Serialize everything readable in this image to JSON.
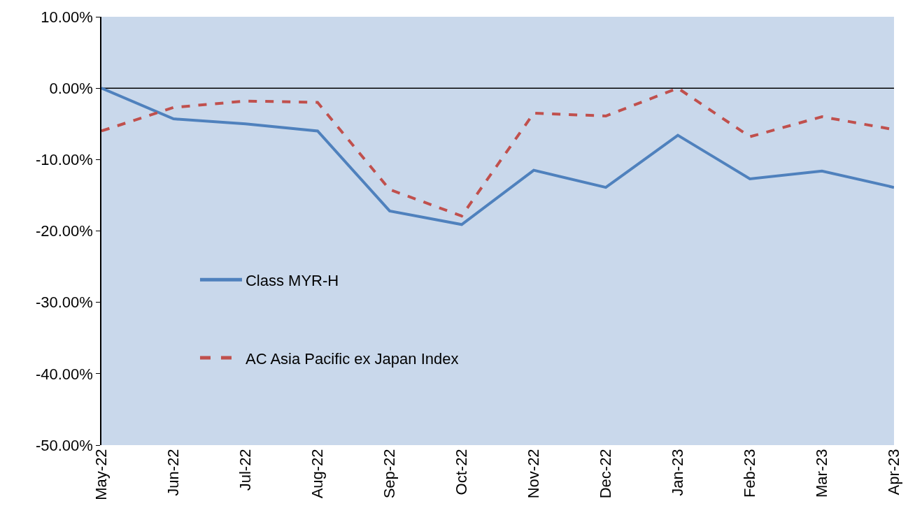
{
  "chart_data": {
    "type": "line",
    "categories": [
      "May-22",
      "Jun-22",
      "Jul-22",
      "Aug-22",
      "Sep-22",
      "Oct-22",
      "Nov-22",
      "Dec-22",
      "Jan-23",
      "Feb-23",
      "Mar-23",
      "Apr-23"
    ],
    "series": [
      {
        "name": "Class MYR-H",
        "color": "#4f81bd",
        "line_style": "solid",
        "values": [
          0.0,
          -4.3,
          -5.0,
          -6.0,
          -17.2,
          -19.1,
          -11.5,
          -13.9,
          -6.6,
          -12.7,
          -11.6,
          -13.9
        ]
      },
      {
        "name": "AC Asia Pacific ex Japan Index",
        "color": "#c0504d",
        "line_style": "dashed",
        "values": [
          -6.0,
          -2.7,
          -1.8,
          -2.0,
          -14.2,
          -17.9,
          -3.5,
          -3.9,
          0.0,
          -6.8,
          -4.0,
          -5.8
        ]
      }
    ],
    "ylim": [
      -50,
      10
    ],
    "yticks": [
      {
        "value": -50,
        "label": "-50.00%"
      },
      {
        "value": -40,
        "label": "-40.00%"
      },
      {
        "value": -30,
        "label": "-30.00%"
      },
      {
        "value": -20,
        "label": "-20.00%"
      },
      {
        "value": -10,
        "label": "-10.00%"
      },
      {
        "value": 0,
        "label": "0.00%"
      },
      {
        "value": 10,
        "label": "10.00%"
      }
    ],
    "grid": false,
    "ref_lines": [
      {
        "axis": "y",
        "value": 0,
        "color": "#000000",
        "line_style": "solid"
      }
    ],
    "legend": "bottom left",
    "marker": "none"
  }
}
